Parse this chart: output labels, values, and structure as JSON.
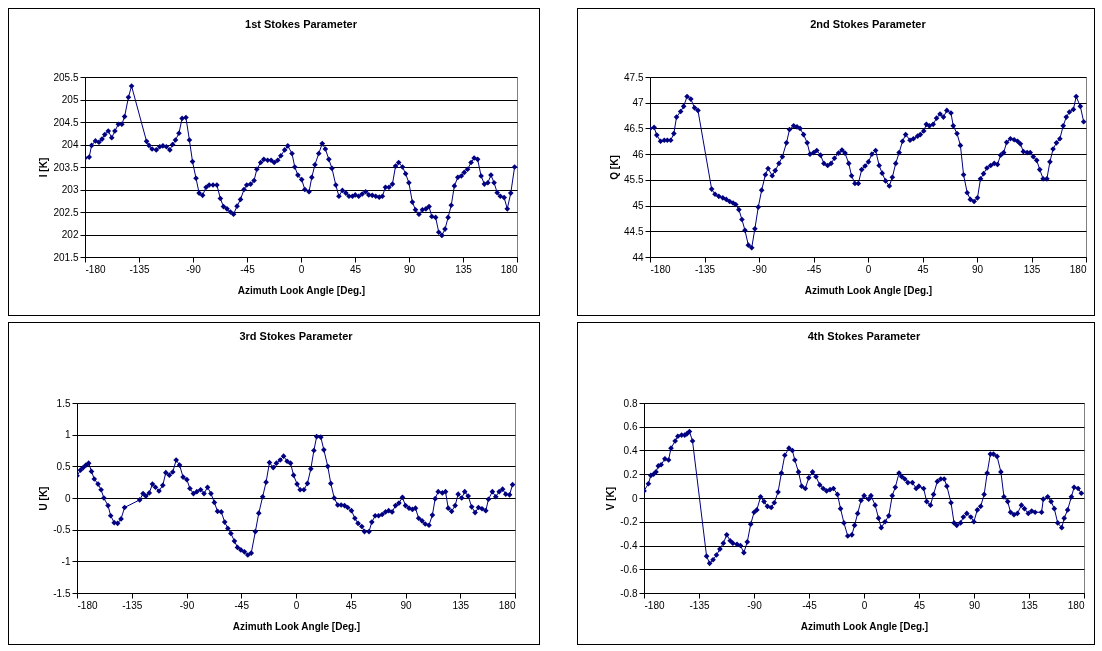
{
  "chart_data": [
    {
      "type": "line",
      "title": "1st Stokes Parameter",
      "xlabel": "Azimuth Look Angle [Deg.]",
      "ylabel": "I [K]",
      "color": "#000080",
      "marker": "diamond",
      "grid": "y",
      "xlim": [
        -180,
        180
      ],
      "xticks": [
        -180,
        -135,
        -90,
        -45,
        0,
        45,
        90,
        135,
        180
      ],
      "ylim": [
        201.5,
        205.5
      ],
      "yticks": [
        201.5,
        202,
        202.5,
        203,
        203.5,
        204,
        204.5,
        205,
        205.5
      ],
      "x": [
        -180,
        -176.5,
        -174.5,
        -171.3,
        -168.4,
        -165.8,
        -163.5,
        -160.6,
        -157.7,
        -155.1,
        -152.2,
        -149.3,
        -147,
        -143.8,
        -141.2,
        -128.7,
        -126.7,
        -124.1,
        -120.6,
        -117.7,
        -115.1,
        -112.2,
        -109.3,
        -107,
        -104.6,
        -101.7,
        -99.1,
        -95.9,
        -93,
        -90.4,
        -87.5,
        -84.9,
        -82,
        -79.1,
        -76.5,
        -73.3,
        -70.1,
        -67.2,
        -64.6,
        -61.7,
        -58.8,
        -56.2,
        -53.3,
        -50.4,
        -47.5,
        -45.2,
        -42,
        -39.1,
        -36.8,
        -33.6,
        -31,
        -27.8,
        -24.9,
        -22.3,
        -19.4,
        -16.8,
        -13.6,
        -11,
        -7.5,
        -5.2,
        -2.6,
        0.6,
        3.2,
        6.7,
        9,
        11.6,
        14.8,
        17.7,
        20.3,
        23.2,
        25.8,
        29,
        31.6,
        34.5,
        37.4,
        40,
        42.9,
        45.2,
        48.1,
        51,
        53.9,
        56.5,
        59.4,
        62.3,
        65.2,
        67.8,
        70.4,
        73.3,
        76.2,
        78.8,
        81.4,
        84.6,
        87.2,
        89.9,
        92.8,
        95.4,
        98.3,
        101.2,
        104.1,
        106.7,
        109,
        112.2,
        114.8,
        117.4,
        120,
        122.6,
        125.2,
        127.8,
        130.7,
        133.6,
        136,
        138.8,
        141.7,
        144.3,
        147.2,
        150.1,
        152.8,
        155.7,
        158.3,
        160.9,
        163.5,
        166.1,
        169.3,
        171.9,
        174.8,
        178
      ],
      "values": [
        203.7,
        203.72,
        203.98,
        204.08,
        204.05,
        204.12,
        204.22,
        204.3,
        204.15,
        204.3,
        204.45,
        204.45,
        204.62,
        205.05,
        205.3,
        204.07,
        203.98,
        203.9,
        203.88,
        203.95,
        203.97,
        203.95,
        203.88,
        204.0,
        204.1,
        204.25,
        204.58,
        204.6,
        204.1,
        203.62,
        203.25,
        202.92,
        202.87,
        203.05,
        203.1,
        203.1,
        203.1,
        202.8,
        202.62,
        202.57,
        202.5,
        202.45,
        202.63,
        202.78,
        203.0,
        203.1,
        203.12,
        203.2,
        203.45,
        203.6,
        203.67,
        203.65,
        203.65,
        203.6,
        203.65,
        203.75,
        203.88,
        203.97,
        203.8,
        203.5,
        203.32,
        203.22,
        203.0,
        202.95,
        203.27,
        203.55,
        203.8,
        204.02,
        203.9,
        203.67,
        203.47,
        203.1,
        202.85,
        202.98,
        202.92,
        202.85,
        202.85,
        202.88,
        202.85,
        202.9,
        202.95,
        202.88,
        202.87,
        202.85,
        202.83,
        202.85,
        203.05,
        203.05,
        203.12,
        203.52,
        203.6,
        203.5,
        203.35,
        203.15,
        202.72,
        202.55,
        202.45,
        202.55,
        202.57,
        202.62,
        202.4,
        202.38,
        202.05,
        201.98,
        202.12,
        202.38,
        202.65,
        203.08,
        203.27,
        203.3,
        203.38,
        203.45,
        203.6,
        203.7,
        203.67,
        203.3,
        203.12,
        203.15,
        203.32,
        203.15,
        202.93,
        202.85,
        202.82,
        202.57,
        202.92,
        203.5
      ]
    },
    {
      "type": "line",
      "title": "2nd Stokes Parameter",
      "xlabel": "Azimuth Look Angle [Deg.]",
      "ylabel": "Q [K]",
      "color": "#000080",
      "marker": "diamond",
      "grid": "y",
      "xlim": [
        -180,
        180
      ],
      "xticks": [
        -180,
        -135,
        -90,
        -45,
        0,
        45,
        90,
        135,
        180
      ],
      "ylim": [
        44,
        47.5
      ],
      "yticks": [
        44,
        44.5,
        45,
        45.5,
        46,
        46.5,
        47,
        47.5
      ],
      "x": [
        -180,
        -176.6,
        -174.4,
        -171.3,
        -168.2,
        -165.7,
        -162.9,
        -160.3,
        -158.1,
        -154.7,
        -152.2,
        -149.4,
        -146.3,
        -143.2,
        -140.4,
        -129.1,
        -126.3,
        -123.2,
        -119.9,
        -117,
        -114.2,
        -111.4,
        -109.2,
        -106.6,
        -104.1,
        -101.6,
        -98.8,
        -96,
        -93.4,
        -90.6,
        -87.8,
        -84.7,
        -82.5,
        -79.1,
        -76.6,
        -73.5,
        -70.7,
        -67.3,
        -64.8,
        -61.4,
        -58.6,
        -56.1,
        -53.2,
        -50.2,
        -47.9,
        -44.8,
        -42.3,
        -39.2,
        -36.4,
        -33.3,
        -30.5,
        -27.7,
        -24.3,
        -21.5,
        -19,
        -15.9,
        -13.6,
        -10.8,
        -8,
        -5.2,
        -2.4,
        0.4,
        3.2,
        6.3,
        9.2,
        11.7,
        14.5,
        17.6,
        20.1,
        22.9,
        25.7,
        28.5,
        31.1,
        34.7,
        37.5,
        40.9,
        43.2,
        46,
        48.2,
        50.7,
        53.8,
        56.6,
        59.5,
        62.3,
        65.1,
        68.5,
        70.4,
        73.5,
        76.3,
        78.9,
        81.9,
        84.5,
        87.6,
        90.4,
        92.9,
        95.4,
        98.2,
        101.3,
        104.2,
        106.9,
        109.5,
        112,
        114.5,
        117.6,
        120.7,
        123.5,
        125.8,
        128.3,
        131.4,
        133.9,
        136.5,
        139.3,
        141.8,
        144.6,
        147.7,
        150.2,
        152.8,
        155.6,
        158.4,
        161.2,
        163.7,
        166.3,
        169.6,
        171.9,
        175.3,
        178.1
      ],
      "values": [
        46.5,
        46.52,
        46.37,
        46.25,
        46.27,
        46.27,
        46.27,
        46.4,
        46.72,
        46.83,
        46.93,
        47.12,
        47.07,
        46.9,
        46.85,
        45.32,
        45.22,
        45.18,
        45.15,
        45.12,
        45.08,
        45.05,
        45.02,
        44.92,
        44.73,
        44.52,
        44.23,
        44.18,
        44.55,
        44.97,
        45.3,
        45.6,
        45.72,
        45.58,
        45.68,
        45.82,
        45.95,
        46.22,
        46.48,
        46.55,
        46.53,
        46.5,
        46.38,
        46.22,
        46.0,
        46.03,
        46.07,
        45.98,
        45.82,
        45.78,
        45.82,
        45.92,
        46.02,
        46.08,
        46.02,
        45.82,
        45.58,
        45.43,
        45.43,
        45.7,
        45.77,
        45.85,
        46.0,
        46.07,
        45.78,
        45.63,
        45.48,
        45.38,
        45.55,
        45.82,
        46.03,
        46.25,
        46.38,
        46.27,
        46.3,
        46.35,
        46.38,
        46.45,
        46.58,
        46.55,
        46.58,
        46.7,
        46.78,
        46.72,
        46.85,
        46.8,
        46.55,
        46.4,
        46.17,
        45.6,
        45.25,
        45.12,
        45.08,
        45.15,
        45.52,
        45.62,
        45.73,
        45.78,
        45.82,
        45.8,
        45.98,
        46.03,
        46.23,
        46.3,
        46.28,
        46.25,
        46.2,
        46.05,
        46.03,
        46.03,
        45.95,
        45.88,
        45.7,
        45.52,
        45.52,
        45.85,
        46.1,
        46.22,
        46.3,
        46.55,
        46.72,
        46.82,
        46.87,
        47.12,
        46.93,
        46.63
      ]
    },
    {
      "type": "line",
      "title": "3rd Stokes Parameter",
      "xlabel": "Azimuth Look Angle [Deg.]",
      "ylabel": "U [K]",
      "color": "#000080",
      "marker": "diamond",
      "grid": "y",
      "xlim": [
        -180,
        180
      ],
      "xticks": [
        -180,
        -135,
        -90,
        -45,
        0,
        45,
        90,
        135,
        180
      ],
      "ylim": [
        -1.5,
        1.5
      ],
      "yticks": [
        -1.5,
        -1,
        -0.5,
        0,
        0.5,
        1,
        1.5
      ],
      "x": [
        -180,
        -177.2,
        -174.9,
        -172.6,
        -170.4,
        -168.1,
        -165.8,
        -162.7,
        -160.2,
        -157.9,
        -154.5,
        -152.3,
        -149.4,
        -146.6,
        -143.8,
        -140.9,
        -128.5,
        -125.7,
        -123.4,
        -120.6,
        -118,
        -115.5,
        -112.6,
        -109.5,
        -107,
        -104.1,
        -101.3,
        -98.5,
        -95.7,
        -92.8,
        -89.7,
        -87.2,
        -84.3,
        -81.5,
        -78.4,
        -75.6,
        -72.7,
        -69.9,
        -67.1,
        -64.5,
        -61.4,
        -58.6,
        -56,
        -53.5,
        -50.6,
        -48.1,
        -45.3,
        -42.4,
        -39.6,
        -36.8,
        -33.4,
        -30.6,
        -27.4,
        -24.6,
        -21.8,
        -18.7,
        -16.1,
        -13,
        -10.2,
        -7.3,
        -4.5,
        -2,
        0.9,
        3.4,
        6.5,
        9.4,
        12.2,
        14.7,
        17,
        20.4,
        22.9,
        26.1,
        28.6,
        31.4,
        34.3,
        37.1,
        39.9,
        42.5,
        45.6,
        48.4,
        51,
        54.1,
        56.3,
        60,
        62.3,
        65.1,
        67.9,
        70.8,
        73.6,
        76.2,
        79,
        81.8,
        84.6,
        87.5,
        90,
        92.9,
        95.7,
        98.2,
        100.8,
        103.6,
        106.2,
        109.3,
        112.1,
        114.4,
        116.9,
        120.3,
        122.9,
        125.1,
        127.9,
        130.8,
        133.3,
        136.2,
        138.7,
        141.5,
        144.4,
        147.2,
        150,
        152.9,
        156,
        158.2,
        161.4,
        164.2,
        167,
        169.8,
        172.4,
        175.5,
        178
      ],
      "values": [
        0.35,
        0.44,
        0.48,
        0.52,
        0.55,
        0.42,
        0.3,
        0.22,
        0.13,
        0.0,
        -0.12,
        -0.28,
        -0.39,
        -0.4,
        -0.33,
        -0.15,
        -0.03,
        0.07,
        0.03,
        0.08,
        0.22,
        0.17,
        0.11,
        0.2,
        0.4,
        0.36,
        0.41,
        0.6,
        0.52,
        0.33,
        0.29,
        0.15,
        0.07,
        0.1,
        0.13,
        0.07,
        0.17,
        0.07,
        -0.07,
        -0.21,
        -0.22,
        -0.38,
        -0.48,
        -0.56,
        -0.68,
        -0.78,
        -0.82,
        -0.85,
        -0.9,
        -0.87,
        -0.53,
        -0.24,
        0.02,
        0.25,
        0.56,
        0.48,
        0.55,
        0.6,
        0.66,
        0.58,
        0.55,
        0.36,
        0.22,
        0.13,
        0.13,
        0.23,
        0.46,
        0.75,
        0.97,
        0.96,
        0.76,
        0.5,
        0.23,
        0.0,
        -0.11,
        -0.11,
        -0.12,
        -0.15,
        -0.2,
        -0.32,
        -0.4,
        -0.45,
        -0.53,
        -0.53,
        -0.38,
        -0.28,
        -0.28,
        -0.26,
        -0.22,
        -0.2,
        -0.22,
        -0.12,
        -0.08,
        0.01,
        -0.12,
        -0.16,
        -0.18,
        -0.16,
        -0.32,
        -0.36,
        -0.41,
        -0.43,
        -0.27,
        -0.01,
        0.1,
        0.08,
        0.1,
        -0.16,
        -0.21,
        -0.12,
        0.06,
        0.0,
        0.1,
        0.03,
        -0.14,
        -0.23,
        -0.15,
        -0.17,
        -0.2,
        -0.02,
        0.1,
        0.02,
        0.1,
        0.14,
        0.06,
        0.05,
        0.21
      ]
    },
    {
      "type": "line",
      "title": "4th Stokes Parameter",
      "xlabel": "Azimuth Look Angle [Deg.]",
      "ylabel": "V [K]",
      "color": "#000080",
      "marker": "diamond",
      "grid": "y",
      "xlim": [
        -180,
        180
      ],
      "xticks": [
        -180,
        -135,
        -90,
        -45,
        0,
        45,
        90,
        135,
        180
      ],
      "ylim": [
        -0.8,
        0.8
      ],
      "yticks": [
        -0.8,
        -0.6,
        -0.4,
        -0.2,
        0,
        0.2,
        0.4,
        0.6,
        0.8
      ],
      "x": [
        -180,
        -176.4,
        -174.4,
        -172.2,
        -170.2,
        -168.3,
        -166,
        -162.9,
        -159.9,
        -157.9,
        -154.5,
        -152.3,
        -149.2,
        -146.7,
        -145,
        -142.8,
        -140.3,
        -128.8,
        -126.3,
        -123.5,
        -120.7,
        -117.9,
        -115.1,
        -112.3,
        -109.5,
        -107.3,
        -103.9,
        -101.1,
        -98.3,
        -95.5,
        -92.7,
        -89.9,
        -87.7,
        -84.6,
        -81.8,
        -79,
        -75.9,
        -73.4,
        -70.3,
        -67.6,
        -64.8,
        -61.4,
        -58.6,
        -56.6,
        -53.6,
        -51,
        -48,
        -45.2,
        -42.1,
        -39.3,
        -36.2,
        -33.4,
        -30.6,
        -27.8,
        -25,
        -21.7,
        -19.2,
        -16.4,
        -13.3,
        -9.9,
        -7.7,
        -5.2,
        -2.4,
        0.1,
        3.8,
        5.7,
        9.1,
        11.9,
        14.1,
        17.2,
        20.3,
        23.1,
        25.6,
        28.7,
        30.9,
        33.4,
        35.9,
        39.6,
        42.7,
        44.9,
        48.8,
        51.3,
        54.4,
        56.9,
        60,
        62.8,
        65.6,
        67.8,
        71.2,
        73.7,
        75.9,
        79,
        81.3,
        84.1,
        87.4,
        89.9,
        92.7,
        95.5,
        98.3,
        100.8,
        103.4,
        105.9,
        108.9,
        112,
        114.5,
        117.6,
        119.9,
        122.7,
        125.5,
        128.8,
        131.3,
        134.4,
        137.2,
        140,
        145.3,
        146.7,
        150.3,
        153.1,
        155.7,
        158.5,
        161.8,
        163.8,
        166.6,
        169.7,
        171.9,
        175.2,
        177.8
      ],
      "values": [
        0.06,
        0.12,
        0.19,
        0.2,
        0.22,
        0.27,
        0.28,
        0.33,
        0.32,
        0.42,
        0.48,
        0.52,
        0.53,
        0.53,
        0.54,
        0.56,
        0.48,
        -0.49,
        -0.55,
        -0.52,
        -0.48,
        -0.43,
        -0.38,
        -0.31,
        -0.36,
        -0.38,
        -0.39,
        -0.4,
        -0.46,
        -0.37,
        -0.22,
        -0.12,
        -0.1,
        0.01,
        -0.03,
        -0.07,
        -0.08,
        -0.04,
        0.05,
        0.21,
        0.36,
        0.42,
        0.4,
        0.32,
        0.22,
        0.1,
        0.08,
        0.17,
        0.22,
        0.18,
        0.11,
        0.08,
        0.06,
        0.07,
        0.08,
        0.03,
        -0.09,
        -0.21,
        -0.32,
        -0.31,
        -0.23,
        -0.13,
        -0.02,
        0.02,
        -0.01,
        0.02,
        -0.06,
        -0.17,
        -0.25,
        -0.2,
        -0.15,
        0.02,
        0.09,
        0.21,
        0.18,
        0.16,
        0.13,
        0.13,
        0.08,
        0.1,
        0.08,
        -0.03,
        -0.06,
        0.03,
        0.14,
        0.16,
        0.16,
        0.1,
        -0.04,
        -0.21,
        -0.23,
        -0.21,
        -0.16,
        -0.13,
        -0.16,
        -0.2,
        -0.1,
        -0.07,
        0.03,
        0.21,
        0.37,
        0.37,
        0.35,
        0.22,
        0.01,
        -0.03,
        -0.12,
        -0.14,
        -0.13,
        -0.06,
        -0.09,
        -0.13,
        -0.11,
        -0.12,
        -0.12,
        -0.01,
        0.01,
        -0.03,
        -0.09,
        -0.21,
        -0.25,
        -0.17,
        -0.1,
        0.01,
        0.09,
        0.08,
        0.04
      ]
    }
  ]
}
